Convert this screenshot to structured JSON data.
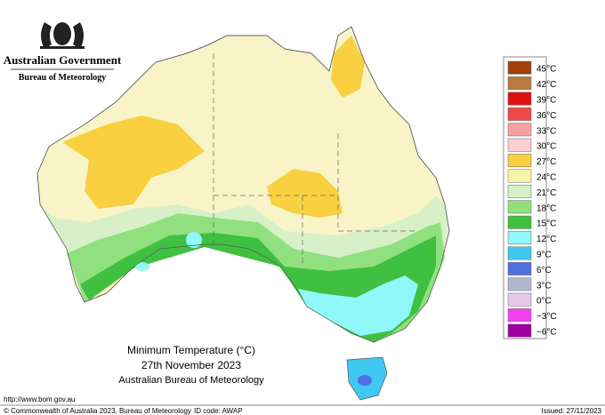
{
  "header": {
    "government": "Australian Government",
    "bureau": "Bureau of Meteorology"
  },
  "legend": [
    {
      "label": "45°C",
      "color": "#a0400a"
    },
    {
      "label": "42°C",
      "color": "#b87a40"
    },
    {
      "label": "39°C",
      "color": "#e01010"
    },
    {
      "label": "36°C",
      "color": "#f04848"
    },
    {
      "label": "33°C",
      "color": "#f8a0a0"
    },
    {
      "label": "30°C",
      "color": "#fcd0d0"
    },
    {
      "label": "27°C",
      "color": "#f8d040"
    },
    {
      "label": "24°C",
      "color": "#f8f4a8"
    },
    {
      "label": "21°C",
      "color": "#d8f0c8"
    },
    {
      "label": "18°C",
      "color": "#90e080"
    },
    {
      "label": "15°C",
      "color": "#40c040"
    },
    {
      "label": "12°C",
      "color": "#90f8f8"
    },
    {
      "label": "9°C",
      "color": "#40c8f0"
    },
    {
      "label": "6°C",
      "color": "#5070e0"
    },
    {
      "label": "3°C",
      "color": "#b0b8d0"
    },
    {
      "label": "0°C",
      "color": "#e8c8e8"
    },
    {
      "label": "−3°C",
      "color": "#f040f0"
    },
    {
      "label": "−6°C",
      "color": "#a000a0"
    }
  ],
  "caption": {
    "title": "Minimum Temperature (°C)",
    "date": "27th November 2023",
    "source": "Australian Bureau of Meteorology"
  },
  "footer": {
    "url": "http://www.bom.gov.au",
    "copyright": "© Commonwealth of Australia 2023, Bureau of Meteorology",
    "id_code": "ID code: AWAP",
    "issued": "Issued: 27/11/2023"
  }
}
